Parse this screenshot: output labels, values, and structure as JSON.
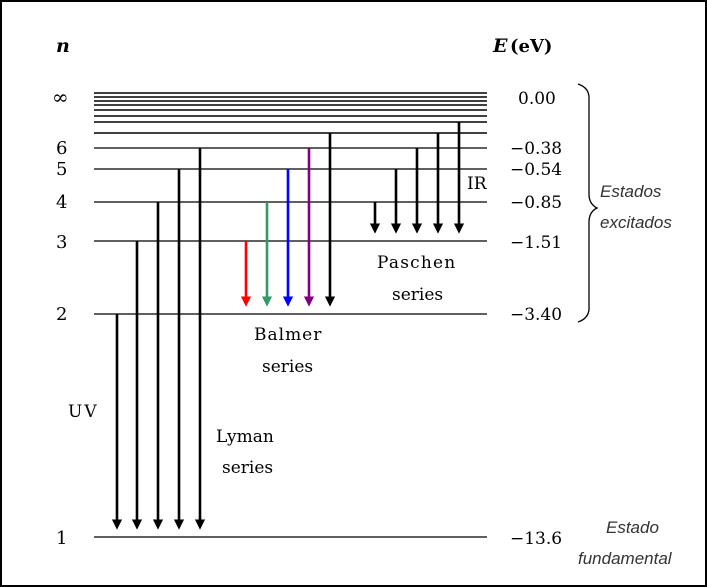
{
  "header": {
    "n_label": "n",
    "e_label_symbol": "E",
    "e_label_unit": "(eV)"
  },
  "levels": [
    {
      "n": "∞",
      "energy": "0.00"
    },
    {
      "n": "6",
      "energy": "−0.38"
    },
    {
      "n": "5",
      "energy": "−0.54"
    },
    {
      "n": "4",
      "energy": "−0.85"
    },
    {
      "n": "3",
      "energy": "−1.51"
    },
    {
      "n": "2",
      "energy": "−3.40"
    },
    {
      "n": "1",
      "energy": "−13.6"
    }
  ],
  "series": {
    "lyman": {
      "line1": "Lyman",
      "line2": "series",
      "region": "UV",
      "lower_level": 1,
      "upper_levels": [
        2,
        3,
        4,
        5,
        6
      ]
    },
    "balmer": {
      "line1": "Balmer",
      "line2": "series",
      "lower_level": 2,
      "upper_levels": [
        3,
        4,
        5,
        6,
        7
      ]
    },
    "paschen": {
      "line1": "Paschen",
      "line2": "series",
      "region": "IR",
      "lower_level": 3,
      "upper_levels": [
        4,
        5,
        6,
        7,
        8
      ]
    }
  },
  "balmer_colors": [
    "#ff0000",
    "#339966",
    "#0000ff",
    "#800080",
    "#000000"
  ],
  "groups": {
    "excited_line1": "Estados",
    "excited_line2": "excitados",
    "ground_line1": "Estado",
    "ground_line2": "fundamental"
  }
}
